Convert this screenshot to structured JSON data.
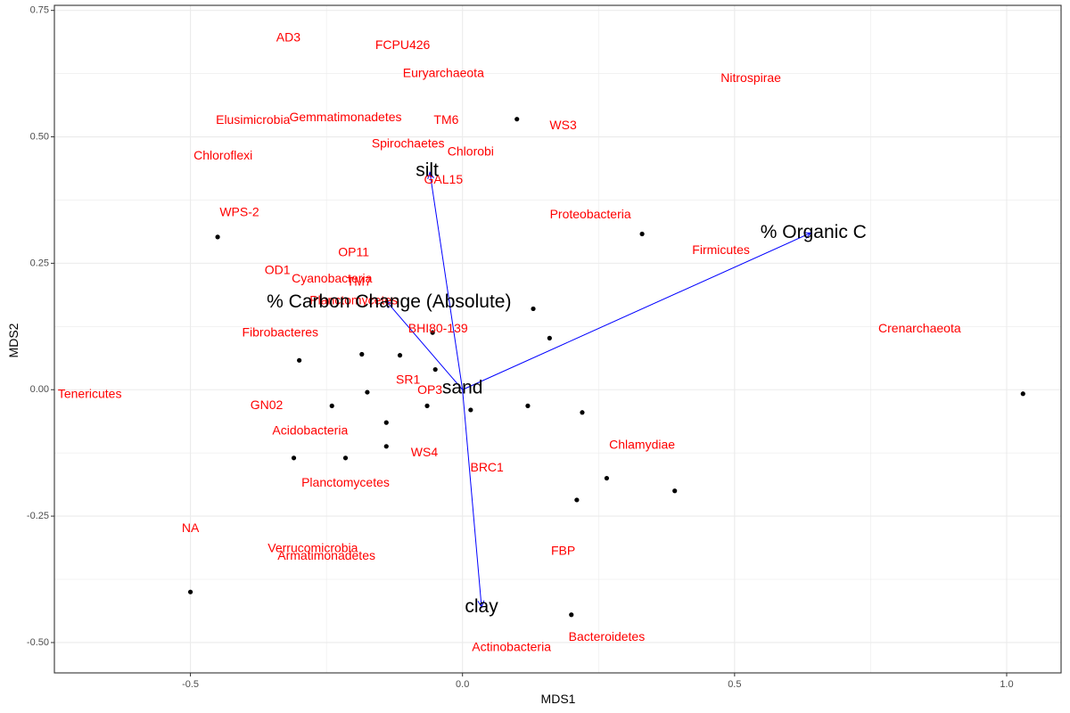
{
  "chart_data": {
    "type": "scatter",
    "xlabel": "MDS1",
    "ylabel": "MDS2",
    "xlim": [
      -0.75,
      1.1
    ],
    "ylim": [
      -0.56,
      0.76
    ],
    "x_ticks": [
      -0.5,
      0.0,
      0.5,
      1.0
    ],
    "x_tick_labels": [
      "-0.5",
      "0.0",
      "0.5",
      "1.0"
    ],
    "y_ticks": [
      -0.5,
      -0.25,
      0.0,
      0.25,
      0.5,
      0.75
    ],
    "y_tick_labels": [
      "-0.50",
      "-0.25",
      "0.00",
      "0.25",
      "0.50",
      "0.75"
    ],
    "grid": true,
    "colors": {
      "points": "#000000",
      "species_labels": "#ff0000",
      "arrows": "#0000ff",
      "panel_border": "#333333",
      "grid": "#ebebeb"
    },
    "sites": [
      {
        "x": 0.1,
        "y": 0.535
      },
      {
        "x": 0.33,
        "y": 0.308
      },
      {
        "x": -0.45,
        "y": 0.302
      },
      {
        "x": 0.13,
        "y": 0.16
      },
      {
        "x": 0.16,
        "y": 0.102
      },
      {
        "x": -0.055,
        "y": 0.113
      },
      {
        "x": -0.3,
        "y": 0.058
      },
      {
        "x": -0.185,
        "y": 0.07
      },
      {
        "x": -0.115,
        "y": 0.068
      },
      {
        "x": -0.05,
        "y": 0.04
      },
      {
        "x": -0.175,
        "y": -0.005
      },
      {
        "x": -0.24,
        "y": -0.032
      },
      {
        "x": -0.065,
        "y": -0.032
      },
      {
        "x": 0.015,
        "y": -0.04
      },
      {
        "x": 0.12,
        "y": -0.032
      },
      {
        "x": 0.22,
        "y": -0.045
      },
      {
        "x": -0.14,
        "y": -0.065
      },
      {
        "x": -0.14,
        "y": -0.112
      },
      {
        "x": -0.31,
        "y": -0.135
      },
      {
        "x": -0.215,
        "y": -0.135
      },
      {
        "x": 0.265,
        "y": -0.175
      },
      {
        "x": 0.39,
        "y": -0.2
      },
      {
        "x": 0.21,
        "y": -0.218
      },
      {
        "x": -0.5,
        "y": -0.4
      },
      {
        "x": 0.2,
        "y": -0.445
      },
      {
        "x": 1.03,
        "y": -0.008
      }
    ],
    "species": [
      {
        "name": "AD3",
        "x": -0.32,
        "y": 0.695
      },
      {
        "name": "FCPU426",
        "x": -0.11,
        "y": 0.68
      },
      {
        "name": "Euryarchaeota",
        "x": -0.035,
        "y": 0.625
      },
      {
        "name": "Nitrospirae",
        "x": 0.53,
        "y": 0.615
      },
      {
        "name": "Elusimicrobia",
        "x": -0.385,
        "y": 0.532
      },
      {
        "name": "Gemmatimonadetes",
        "x": -0.215,
        "y": 0.537
      },
      {
        "name": "TM6",
        "x": -0.03,
        "y": 0.532
      },
      {
        "name": "WS3",
        "x": 0.185,
        "y": 0.522
      },
      {
        "name": "Spirochaetes",
        "x": -0.1,
        "y": 0.485
      },
      {
        "name": "Chlorobi",
        "x": 0.015,
        "y": 0.47
      },
      {
        "name": "Chloroflexi",
        "x": -0.44,
        "y": 0.462
      },
      {
        "name": "GAL15",
        "x": -0.035,
        "y": 0.414
      },
      {
        "name": "WPS-2",
        "x": -0.41,
        "y": 0.35
      },
      {
        "name": "Proteobacteria",
        "x": 0.235,
        "y": 0.345
      },
      {
        "name": "OP11",
        "x": -0.2,
        "y": 0.27
      },
      {
        "name": "Firmicutes",
        "x": 0.475,
        "y": 0.275
      },
      {
        "name": "OD1",
        "x": -0.34,
        "y": 0.235
      },
      {
        "name": "Cyanobacteria",
        "x": -0.24,
        "y": 0.218
      },
      {
        "name": "TM7",
        "x": -0.19,
        "y": 0.212
      },
      {
        "name": "Planctomycetes",
        "x": -0.2,
        "y": 0.175
      },
      {
        "name": "BHI80-139",
        "x": -0.045,
        "y": 0.12
      },
      {
        "name": "Fibrobacteres",
        "x": -0.335,
        "y": 0.112
      },
      {
        "name": "Crenarchaeota",
        "x": 0.84,
        "y": 0.12
      },
      {
        "name": "Tenericutes",
        "x": -0.685,
        "y": -0.01
      },
      {
        "name": "SR1",
        "x": -0.1,
        "y": 0.018
      },
      {
        "name": "OP3",
        "x": -0.06,
        "y": -0.002
      },
      {
        "name": "GN02",
        "x": -0.36,
        "y": -0.032
      },
      {
        "name": "Acidobacteria",
        "x": -0.28,
        "y": -0.082
      },
      {
        "name": "WS4",
        "x": -0.07,
        "y": -0.125
      },
      {
        "name": "Chlamydiae",
        "x": 0.33,
        "y": -0.11
      },
      {
        "name": "BRC1",
        "x": 0.045,
        "y": -0.155
      },
      {
        "name": "Planctomycetes",
        "x": -0.215,
        "y": -0.185
      },
      {
        "name": "NA",
        "x": -0.5,
        "y": -0.275
      },
      {
        "name": "Verrucomicrobia",
        "x": -0.275,
        "y": -0.315
      },
      {
        "name": "Armatimonadetes",
        "x": -0.25,
        "y": -0.33
      },
      {
        "name": "FBP",
        "x": 0.185,
        "y": -0.32
      },
      {
        "name": "Bacteroidetes",
        "x": 0.265,
        "y": -0.49
      },
      {
        "name": "Actinobacteria",
        "x": 0.09,
        "y": -0.51
      }
    ],
    "env_vectors": [
      {
        "name": "silt",
        "x": -0.06,
        "y": 0.43,
        "lx": -0.065,
        "ly": 0.432
      },
      {
        "name": "% Organic C",
        "x": 0.64,
        "y": 0.31,
        "lx": 0.645,
        "ly": 0.31
      },
      {
        "name": "% Carbon Change (Absolute)",
        "x": -0.14,
        "y": 0.175,
        "lx": -0.135,
        "ly": 0.172
      },
      {
        "name": "sand",
        "x": 0.0,
        "y": 0.0,
        "lx": 0.0,
        "ly": 0.002
      },
      {
        "name": "clay",
        "x": 0.035,
        "y": -0.43,
        "lx": 0.035,
        "ly": -0.43
      }
    ],
    "origin": {
      "x": 0.0,
      "y": 0.0
    }
  }
}
